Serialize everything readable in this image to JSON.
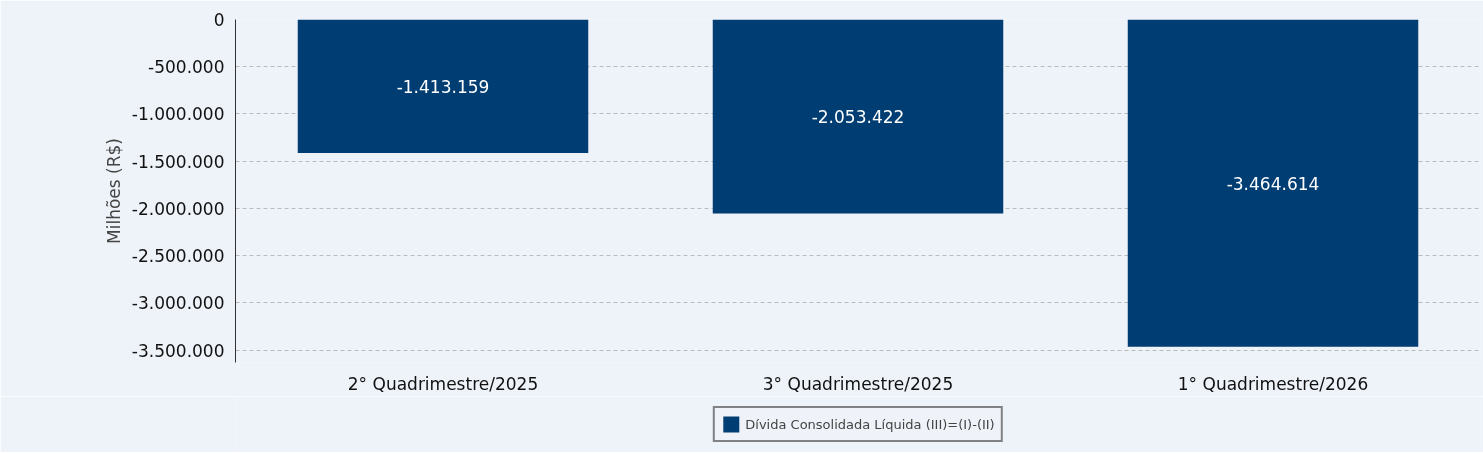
{
  "chart_data": {
    "type": "bar",
    "ylabel": "Milhões (R$)",
    "categories": [
      "2° Quadrimestre/2025",
      "3° Quadrimestre/2025",
      "1° Quadrimestre/2026"
    ],
    "series": [
      {
        "name": "Dívida Consolidada Líquida (III)=(I)-(II)",
        "color": "#003d73",
        "values": [
          -1413159,
          -2053422,
          -3464614
        ],
        "value_labels": [
          "-1.413.159",
          "-2.053.422",
          "-3.464.614"
        ]
      }
    ],
    "ylim": [
      -3630000,
      0
    ],
    "yticks": [
      {
        "value": 0,
        "label": "0"
      },
      {
        "value": -500000,
        "label": "-500.000"
      },
      {
        "value": -1000000,
        "label": "-1.000.000"
      },
      {
        "value": -1500000,
        "label": "-1.500.000"
      },
      {
        "value": -2000000,
        "label": "-2.000.000"
      },
      {
        "value": -2500000,
        "label": "-2.500.000"
      },
      {
        "value": -3000000,
        "label": "-3.000.000"
      },
      {
        "value": -3500000,
        "label": "-3.500.000"
      }
    ],
    "grid": "y",
    "legend": "bottom"
  }
}
